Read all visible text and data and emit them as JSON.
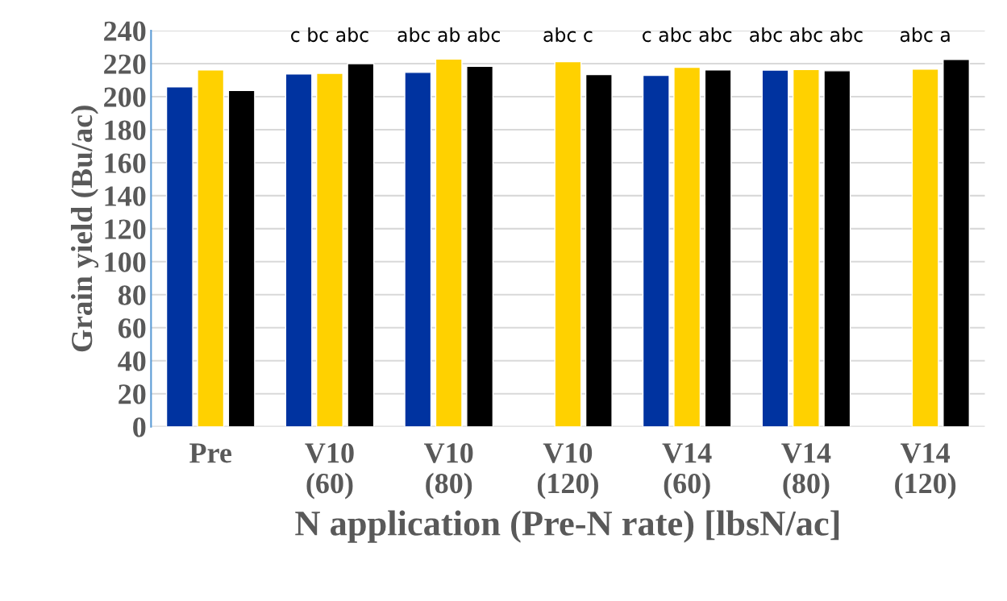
{
  "chart_data": {
    "type": "bar",
    "categories": [
      "Pre",
      "V10\n(60)",
      "V10\n(80)",
      "V10\n(120)",
      "V14\n(60)",
      "V14\n(80)",
      "V14\n(120)"
    ],
    "series": [
      {
        "color": "#0033a0",
        "values": [
          206,
          213.8,
          214.7,
          null,
          212.9,
          216.1,
          null
        ],
        "value_labels": [
          null,
          "c",
          "abc",
          null,
          "c",
          "abc",
          null
        ]
      },
      {
        "color": "#ffd100",
        "values": [
          216.2,
          214.1,
          222.8,
          221.2,
          217.8,
          216.4,
          216.7
        ],
        "value_labels": [
          null,
          "bc",
          "ab",
          "abc",
          "abc",
          "abc",
          "abc"
        ]
      },
      {
        "color": "#000000",
        "values": [
          203.8,
          220,
          218.4,
          213.4,
          216.2,
          215.7,
          222.6
        ],
        "value_labels": [
          null,
          "abc",
          "abc",
          "c",
          "abc",
          "abc",
          "a"
        ]
      }
    ],
    "xlabel": "N application (Pre-N rate) [lbsN/ac]",
    "ylabel": "Grain yield (Bu/ac)",
    "ylim": [
      0,
      240
    ],
    "yticks": [
      0,
      20,
      40,
      60,
      80,
      100,
      120,
      140,
      160,
      180,
      200,
      220,
      240
    ],
    "grid": "y"
  }
}
